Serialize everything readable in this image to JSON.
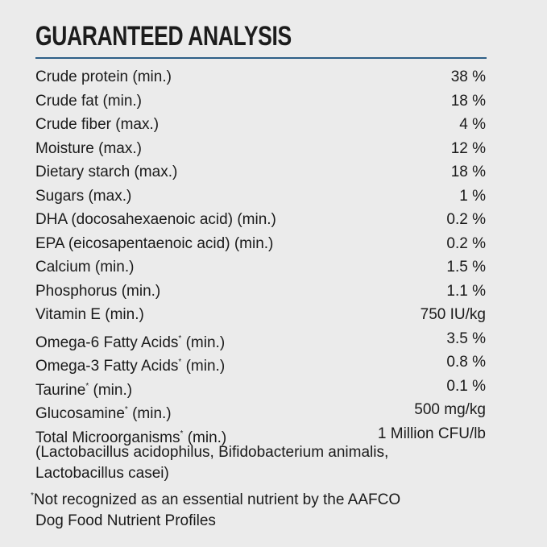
{
  "title": "GUARANTEED ANALYSIS",
  "colors": {
    "rule": "#2d5f86",
    "background": "#ebebeb"
  },
  "rows": [
    {
      "label": "Crude protein",
      "marker": "",
      "qualifier": "(min.)",
      "value": "38 %"
    },
    {
      "label": "Crude fat",
      "marker": "",
      "qualifier": "(min.)",
      "value": "18 %"
    },
    {
      "label": "Crude fiber",
      "marker": "",
      "qualifier": "(max.)",
      "value": "4 %"
    },
    {
      "label": "Moisture",
      "marker": "",
      "qualifier": "(max.)",
      "value": "12 %"
    },
    {
      "label": "Dietary starch",
      "marker": "",
      "qualifier": "(max.)",
      "value": "18 %"
    },
    {
      "label": "Sugars",
      "marker": "",
      "qualifier": "(max.)",
      "value": "1 %"
    },
    {
      "label": "DHA (docosahexaenoic acid)",
      "marker": "",
      "qualifier": "(min.)",
      "value": "0.2 %"
    },
    {
      "label": "EPA (eicosapentaenoic acid)",
      "marker": "",
      "qualifier": "(min.)",
      "value": "0.2 %"
    },
    {
      "label": "Calcium",
      "marker": "",
      "qualifier": "(min.)",
      "value": "1.5 %"
    },
    {
      "label": "Phosphorus",
      "marker": "",
      "qualifier": "(min.)",
      "value": "1.1 %"
    },
    {
      "label": "Vitamin E",
      "marker": "",
      "qualifier": "(min.)",
      "value": "750 IU/kg"
    },
    {
      "label": "Omega-6 Fatty Acids",
      "marker": "*",
      "qualifier": "(min.)",
      "value": "3.5 %"
    },
    {
      "label": "Omega-3 Fatty Acids",
      "marker": "*",
      "qualifier": "(min.)",
      "value": "0.8 %"
    },
    {
      "label": "Taurine",
      "marker": "*",
      "qualifier": "(min.)",
      "value": "0.1 %"
    },
    {
      "label": "Glucosamine",
      "marker": "*",
      "qualifier": "(min.)",
      "value": "500 mg/kg"
    },
    {
      "label": "Total Microorganisms",
      "marker": "*",
      "qualifier": "(min.)",
      "value": "1 Million CFU/lb"
    }
  ],
  "microorganisms_note": {
    "line1": "(Lactobacillus acidophilus, Bifidobacterium animalis,",
    "line2": "Lactobacillus casei)"
  },
  "footnote": {
    "marker": "*",
    "line1": "Not recognized as an essential nutrient by the AAFCO",
    "line2": "Dog Food Nutrient Profiles"
  }
}
